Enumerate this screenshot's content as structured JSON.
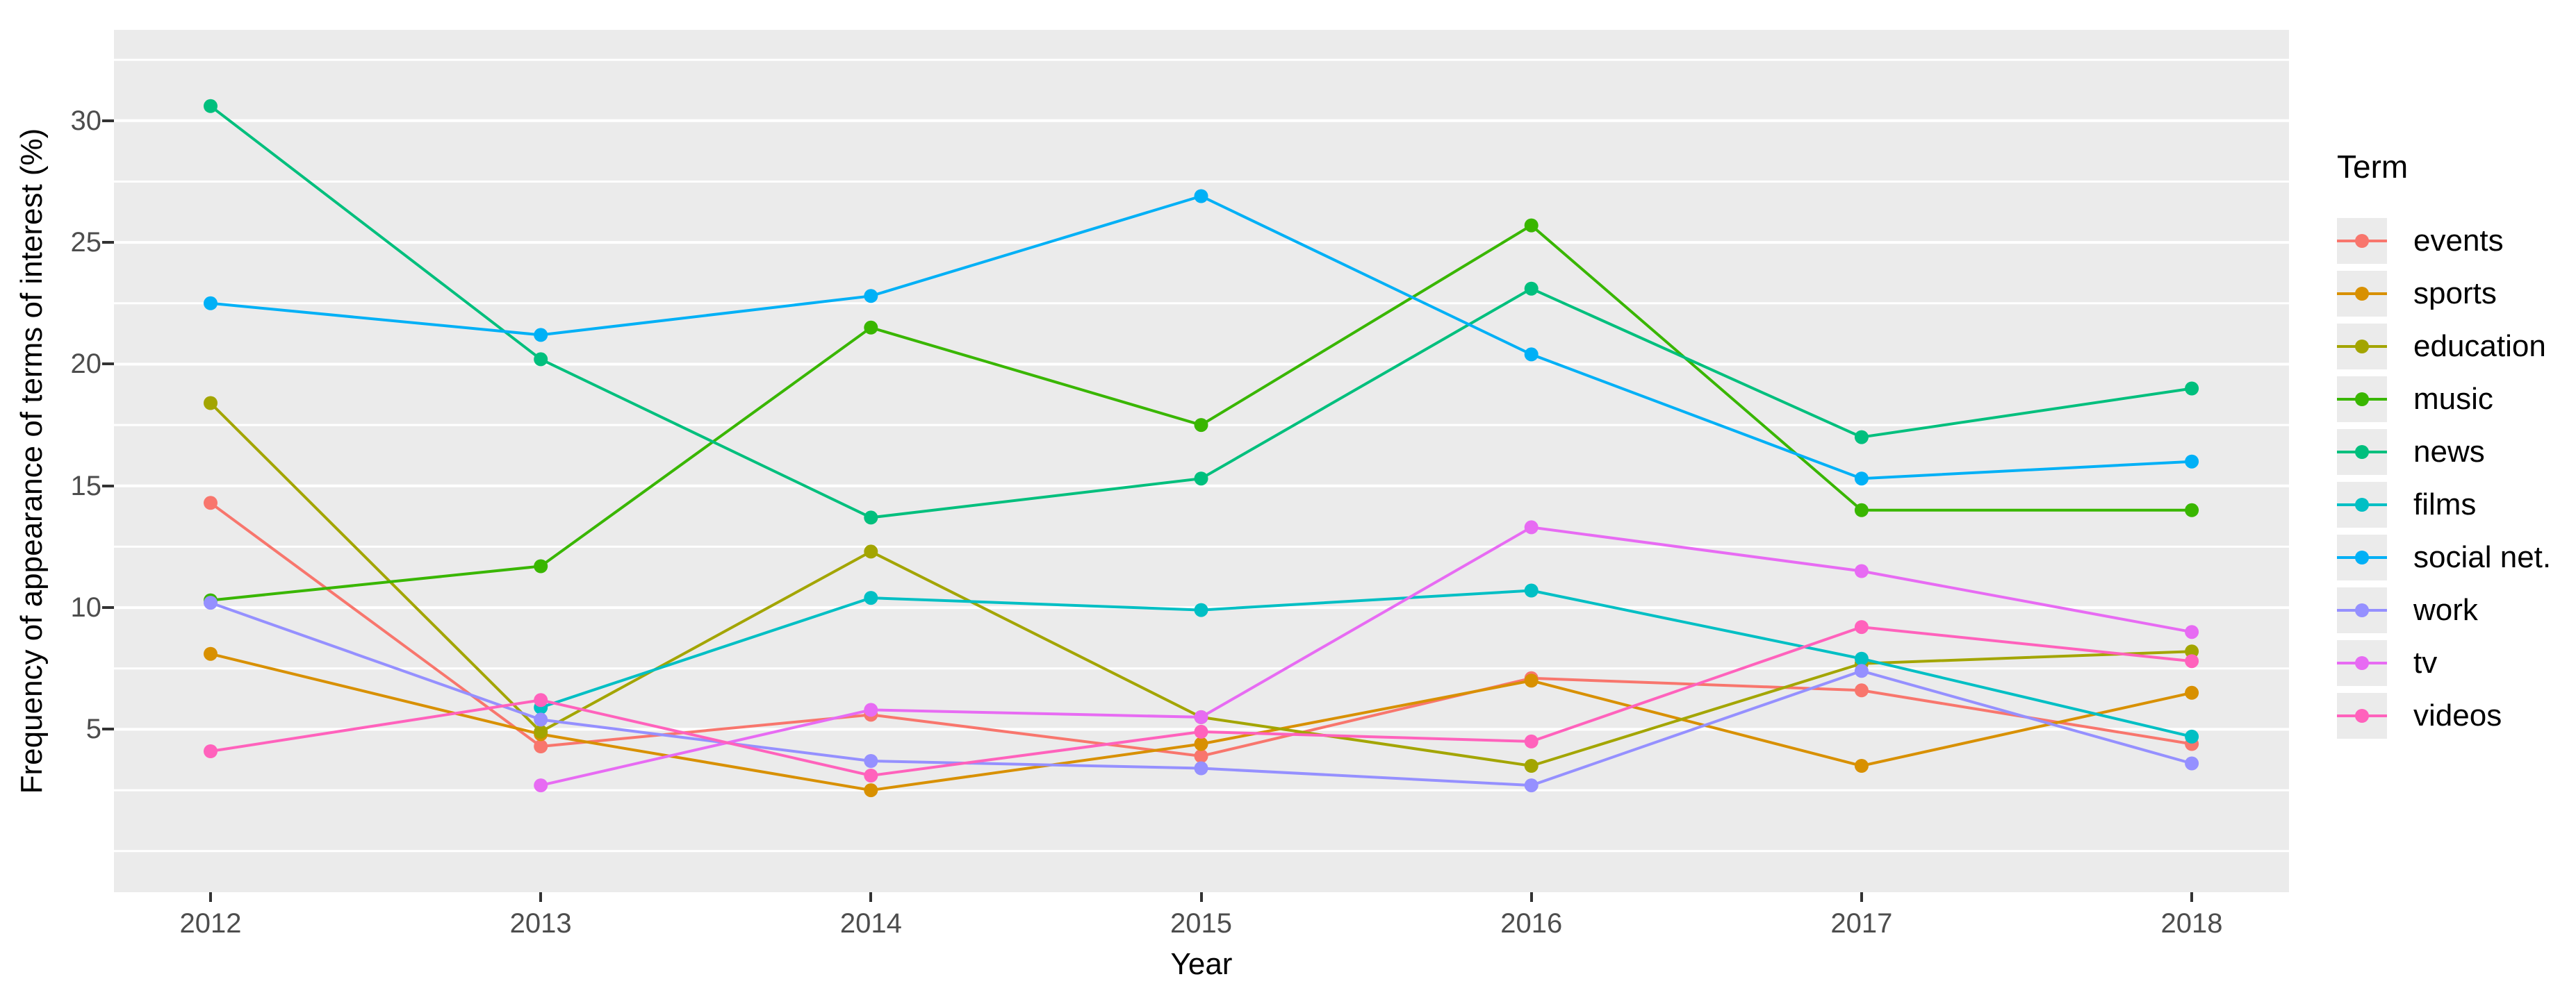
{
  "chart_data": {
    "type": "line",
    "title": "",
    "xlabel": "Year",
    "ylabel": "Frequency of appearance of terms of interest (%)",
    "legend_title": "Term",
    "legend_position": "right",
    "grid": true,
    "x": [
      2012,
      2013,
      2014,
      2015,
      2016,
      2017,
      2018
    ],
    "x_tick_labels": [
      "2012",
      "2013",
      "2014",
      "2015",
      "2016",
      "2017",
      "2018"
    ],
    "y_ticks": [
      5,
      10,
      15,
      20,
      25,
      30
    ],
    "y_tick_labels": [
      "5",
      "10",
      "15",
      "20",
      "25",
      "30"
    ],
    "y_minor_gridlines": [
      0,
      2.5,
      7.5,
      12.5,
      17.5,
      22.5,
      27.5,
      32.5
    ],
    "xlim": [
      2011.7075,
      2018.2945
    ],
    "ylim": [
      -1.69,
      33.73
    ],
    "series": [
      {
        "name": "events",
        "color": "#F8766D",
        "values": [
          14.3,
          4.3,
          5.6,
          3.9,
          7.1,
          6.6,
          4.4
        ]
      },
      {
        "name": "sports",
        "color": "#D89000",
        "values": [
          8.1,
          4.8,
          2.5,
          4.4,
          7.0,
          3.5,
          6.5
        ]
      },
      {
        "name": "education",
        "color": "#A3A500",
        "values": [
          18.4,
          4.9,
          12.3,
          5.5,
          3.5,
          7.7,
          8.2
        ]
      },
      {
        "name": "music",
        "color": "#39B600",
        "values": [
          10.3,
          11.7,
          21.5,
          17.5,
          25.7,
          14.0,
          14.0
        ]
      },
      {
        "name": "news",
        "color": "#00BF7D",
        "values": [
          30.6,
          20.2,
          13.7,
          15.3,
          23.1,
          17.0,
          19.0
        ]
      },
      {
        "name": "films",
        "color": "#00BFC4",
        "values": [
          null,
          5.9,
          10.4,
          9.9,
          10.7,
          7.9,
          4.7
        ]
      },
      {
        "name": "social net.",
        "color": "#00B0F6",
        "values": [
          22.5,
          21.2,
          22.8,
          26.9,
          20.4,
          15.3,
          16.0
        ]
      },
      {
        "name": "work",
        "color": "#9590FF",
        "values": [
          10.2,
          5.4,
          3.7,
          3.4,
          2.7,
          7.4,
          3.6
        ]
      },
      {
        "name": "tv",
        "color": "#E76BF3",
        "values": [
          null,
          2.7,
          5.8,
          5.5,
          13.3,
          11.5,
          9.0
        ]
      },
      {
        "name": "videos",
        "color": "#FF62BC",
        "values": [
          4.1,
          6.2,
          3.1,
          4.9,
          4.5,
          9.2,
          7.8
        ]
      }
    ]
  },
  "style": {
    "bg": "#FFFFFF",
    "panel_bg": "#EBEBEB",
    "grid_color": "#FFFFFF",
    "tick_color": "#333333",
    "tick_label_color": "#4D4D4D",
    "title_color": "#000000",
    "legend_key_bg": "#EBEBEB"
  }
}
